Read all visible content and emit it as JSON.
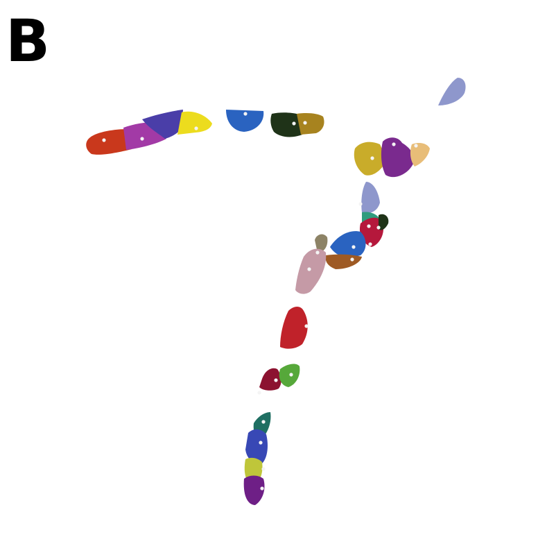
{
  "panel_label": "B",
  "colors": {
    "red_orange": "#c9381c",
    "magenta": "#a23aa6",
    "indigo": "#4a3ea8",
    "yellow": "#ecdc1e",
    "royal_blue": "#2a63c0",
    "dark_green": "#1f3318",
    "gold": "#a7831f",
    "lavender": "#8e97cc",
    "mustard": "#c9ac2a",
    "purple": "#7a2a8e",
    "peach": "#e8bd78",
    "teal": "#2f9c7e",
    "crimson": "#b5183c",
    "brown_orange": "#9e5a24",
    "olive_tan": "#8d8366",
    "pink_mauve": "#c59aa6",
    "red": "#c0222a",
    "maroon": "#8c1230",
    "green": "#56a83a",
    "dark_teal": "#1f6f62",
    "blue": "#3848b5",
    "lime_yellow": "#bfc63a",
    "deep_purple": "#6e1f86"
  }
}
